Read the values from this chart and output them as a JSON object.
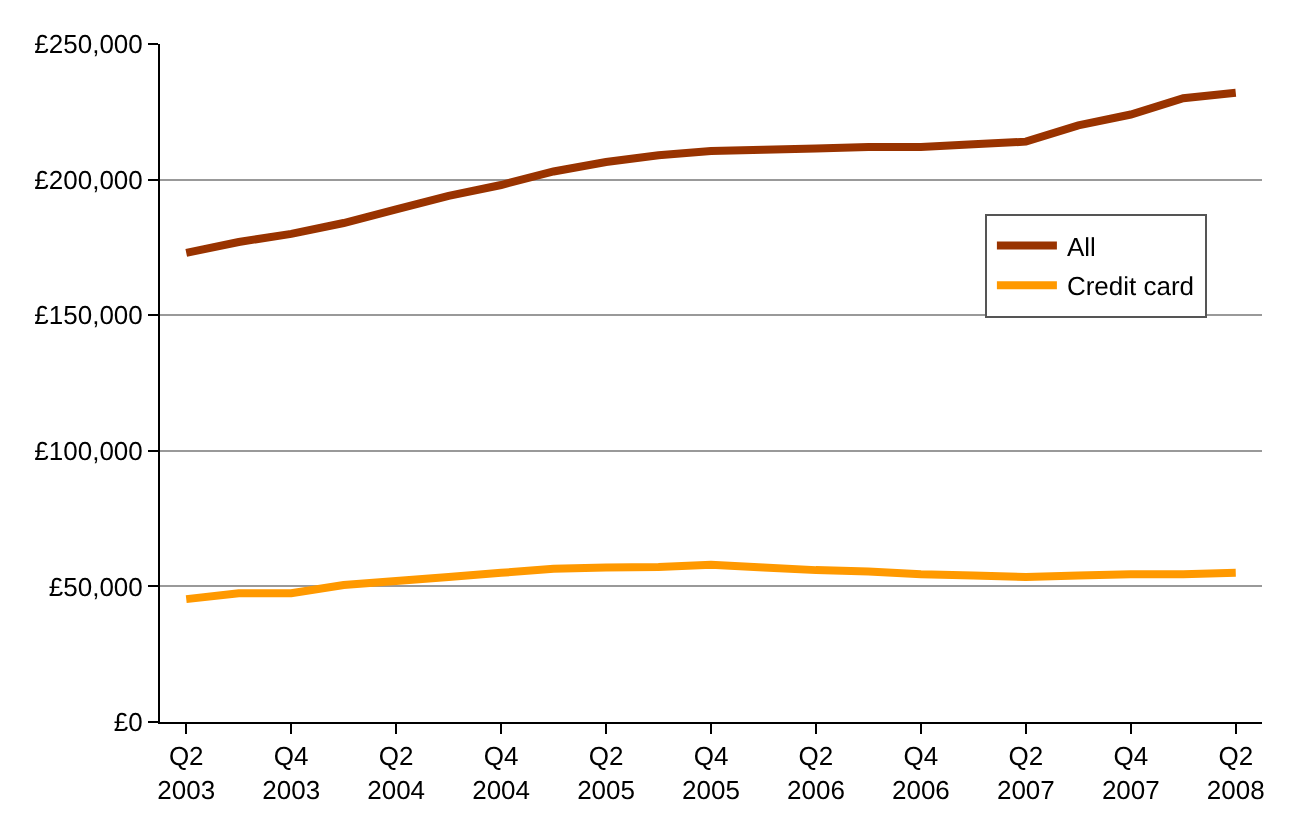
{
  "chart_data": {
    "type": "line",
    "categories": [
      "Q2\n2003",
      null,
      "Q4\n2003",
      null,
      "Q2\n2004",
      null,
      "Q4\n2004",
      null,
      "Q2\n2005",
      null,
      "Q4\n2005",
      null,
      "Q2\n2006",
      null,
      "Q4\n2006",
      null,
      "Q2\n2007",
      null,
      "Q4\n2007",
      null,
      "Q2\n2008"
    ],
    "series": [
      {
        "name": "All",
        "color": "#993300",
        "values": [
          173000,
          177000,
          180000,
          184000,
          189000,
          194000,
          198000,
          203000,
          206500,
          209000,
          210500,
          211000,
          211500,
          212000,
          212000,
          213000,
          214000,
          220000,
          224000,
          230000,
          232000
        ]
      },
      {
        "name": "Credit card",
        "color": "#ff9900",
        "values": [
          45300,
          47500,
          47500,
          50500,
          52000,
          53500,
          55000,
          56500,
          57000,
          57200,
          58000,
          57000,
          56000,
          55500,
          54500,
          54000,
          53500,
          54000,
          54500,
          54500,
          55000
        ]
      }
    ],
    "ylim": [
      0,
      250000
    ],
    "yticks": [
      {
        "value": 0,
        "label": "£0"
      },
      {
        "value": 50000,
        "label": "£50,000"
      },
      {
        "value": 100000,
        "label": "£100,000"
      },
      {
        "value": 150000,
        "label": "£150,000"
      },
      {
        "value": 200000,
        "label": "£200,000"
      },
      {
        "value": 250000,
        "label": "£250,000"
      }
    ],
    "grid": "y",
    "legend": "right",
    "marker": "none",
    "line_style": "solid"
  }
}
